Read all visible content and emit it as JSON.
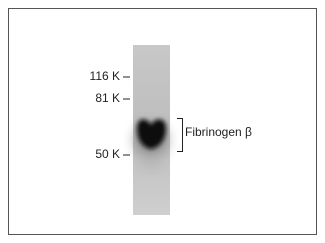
{
  "markers": [
    {
      "label": "116 K"
    },
    {
      "label": "81 K"
    },
    {
      "label": "50 K"
    }
  ],
  "band_label": "Fibrinogen β"
}
